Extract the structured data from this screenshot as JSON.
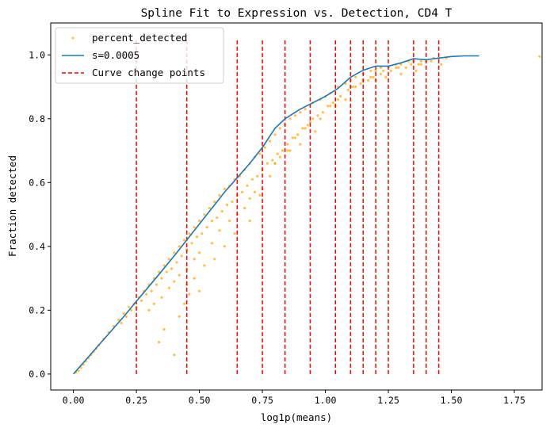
{
  "chart_data": {
    "type": "scatter",
    "title": "Spline Fit to Expression vs. Detection, CD4 T",
    "xlabel": "log1p(means)",
    "ylabel": "Fraction detected",
    "xlim": [
      -0.09,
      1.86
    ],
    "ylim": [
      -0.05,
      1.1
    ],
    "xticks": [
      0.0,
      0.25,
      0.5,
      0.75,
      1.0,
      1.25,
      1.5,
      1.75
    ],
    "xtick_labels": [
      "0.00",
      "0.25",
      "0.50",
      "0.75",
      "1.00",
      "1.25",
      "1.50",
      "1.75"
    ],
    "yticks": [
      0.0,
      0.2,
      0.4,
      0.6,
      0.8,
      1.0
    ],
    "ytick_labels": [
      "0.0",
      "0.2",
      "0.4",
      "0.6",
      "0.8",
      "1.0"
    ],
    "grid": false,
    "legend_position": "top-left",
    "colors": {
      "scatter": "#ffa500",
      "spline": "#1f77b4",
      "change_points": "#ff0000"
    },
    "series": [
      {
        "name": "percent_detected",
        "kind": "scatter",
        "x": [
          0.01,
          0.02,
          0.03,
          0.04,
          0.05,
          0.06,
          0.07,
          0.08,
          0.09,
          0.1,
          0.12,
          0.14,
          0.16,
          0.18,
          0.2,
          0.22,
          0.24,
          0.26,
          0.28,
          0.3,
          0.32,
          0.34,
          0.36,
          0.38,
          0.4,
          0.42,
          0.44,
          0.46,
          0.48,
          0.5,
          0.52,
          0.54,
          0.56,
          0.58,
          0.6,
          0.62,
          0.64,
          0.66,
          0.68,
          0.7,
          0.72,
          0.74,
          0.76,
          0.78,
          0.8,
          0.82,
          0.84,
          0.86,
          0.88,
          0.9,
          0.92,
          0.95,
          0.98,
          1.0,
          1.02,
          1.05,
          1.08,
          1.1,
          1.12,
          1.15,
          1.18,
          1.2,
          1.22,
          1.25,
          1.28,
          1.3,
          1.33,
          1.35,
          1.38,
          1.4,
          1.43,
          1.45,
          1.48,
          1.85,
          0.3,
          0.32,
          0.35,
          0.38,
          0.4,
          0.42,
          0.45,
          0.48,
          0.5,
          0.55,
          0.58,
          0.62,
          0.65,
          0.7,
          0.72,
          0.78,
          0.8,
          0.85,
          0.88,
          0.92,
          0.95,
          1.02,
          1.05,
          1.1,
          1.15,
          1.18,
          1.22,
          1.28,
          1.32,
          1.38,
          0.45,
          0.5,
          0.52,
          0.6,
          0.68,
          0.75,
          0.82,
          0.9,
          0.96,
          1.08,
          1.2,
          1.3,
          0.19,
          0.21,
          0.23,
          0.25,
          0.27,
          0.29,
          0.31,
          0.33,
          0.35,
          0.37,
          0.39,
          0.41,
          0.43,
          0.45,
          0.47,
          0.49,
          0.51,
          0.53,
          0.55,
          0.57,
          0.59,
          0.61,
          0.63,
          0.65,
          0.67,
          0.69,
          0.71,
          0.73,
          0.75,
          0.77,
          0.79,
          0.81,
          0.83,
          0.85,
          0.87,
          0.89,
          0.91,
          0.93,
          0.97,
          0.99,
          1.01,
          1.03,
          1.06,
          1.09,
          1.11,
          1.14,
          1.17,
          1.19,
          1.23,
          1.26,
          1.29,
          1.34,
          1.37,
          1.42,
          0.34,
          0.36,
          0.4,
          0.42,
          0.44,
          0.46,
          0.48,
          0.56,
          0.64,
          0.7,
          0.74,
          0.8,
          0.86,
          0.94,
          0.98,
          1.04,
          1.12,
          1.24,
          1.36,
          1.46
        ],
        "y": [
          0.005,
          0.01,
          0.02,
          0.03,
          0.04,
          0.05,
          0.06,
          0.07,
          0.08,
          0.09,
          0.11,
          0.13,
          0.15,
          0.17,
          0.19,
          0.21,
          0.22,
          0.24,
          0.26,
          0.28,
          0.3,
          0.32,
          0.34,
          0.36,
          0.38,
          0.4,
          0.42,
          0.44,
          0.46,
          0.48,
          0.5,
          0.52,
          0.54,
          0.56,
          0.58,
          0.59,
          0.61,
          0.62,
          0.64,
          0.66,
          0.68,
          0.69,
          0.71,
          0.73,
          0.75,
          0.77,
          0.78,
          0.8,
          0.81,
          0.82,
          0.83,
          0.85,
          0.86,
          0.87,
          0.88,
          0.9,
          0.91,
          0.92,
          0.93,
          0.94,
          0.95,
          0.95,
          0.96,
          0.96,
          0.97,
          0.97,
          0.98,
          0.98,
          0.98,
          0.98,
          0.99,
          0.99,
          0.99,
          0.995,
          0.2,
          0.22,
          0.24,
          0.27,
          0.29,
          0.31,
          0.33,
          0.36,
          0.38,
          0.41,
          0.45,
          0.48,
          0.5,
          0.55,
          0.57,
          0.62,
          0.66,
          0.7,
          0.74,
          0.77,
          0.8,
          0.84,
          0.86,
          0.9,
          0.92,
          0.93,
          0.94,
          0.96,
          0.96,
          0.97,
          0.28,
          0.26,
          0.34,
          0.4,
          0.52,
          0.58,
          0.68,
          0.72,
          0.76,
          0.86,
          0.92,
          0.94,
          0.16,
          0.18,
          0.2,
          0.21,
          0.23,
          0.25,
          0.26,
          0.28,
          0.3,
          0.32,
          0.33,
          0.35,
          0.37,
          0.39,
          0.41,
          0.43,
          0.44,
          0.46,
          0.48,
          0.49,
          0.51,
          0.53,
          0.54,
          0.56,
          0.57,
          0.59,
          0.61,
          0.62,
          0.64,
          0.66,
          0.67,
          0.69,
          0.7,
          0.72,
          0.74,
          0.75,
          0.77,
          0.78,
          0.81,
          0.82,
          0.84,
          0.85,
          0.87,
          0.89,
          0.9,
          0.91,
          0.92,
          0.93,
          0.95,
          0.95,
          0.96,
          0.97,
          0.97,
          0.98,
          0.1,
          0.14,
          0.06,
          0.18,
          0.22,
          0.25,
          0.3,
          0.36,
          0.44,
          0.48,
          0.56,
          0.66,
          0.7,
          0.79,
          0.8,
          0.84,
          0.9,
          0.93,
          0.95,
          0.97
        ]
      },
      {
        "name": "s=0.0005",
        "kind": "line",
        "x": [
          0.0,
          0.05,
          0.1,
          0.15,
          0.2,
          0.25,
          0.3,
          0.35,
          0.4,
          0.45,
          0.5,
          0.55,
          0.6,
          0.65,
          0.7,
          0.75,
          0.8,
          0.84,
          0.9,
          0.95,
          1.0,
          1.05,
          1.1,
          1.15,
          1.2,
          1.25,
          1.3,
          1.35,
          1.4,
          1.45,
          1.5,
          1.55,
          1.61
        ],
        "y": [
          0.0,
          0.045,
          0.09,
          0.135,
          0.18,
          0.228,
          0.275,
          0.322,
          0.37,
          0.42,
          0.47,
          0.52,
          0.57,
          0.615,
          0.66,
          0.71,
          0.77,
          0.8,
          0.83,
          0.85,
          0.87,
          0.895,
          0.93,
          0.952,
          0.965,
          0.965,
          0.975,
          0.988,
          0.985,
          0.99,
          0.995,
          0.997,
          0.997
        ]
      },
      {
        "name": "Curve change points",
        "kind": "vlines",
        "x": [
          0.25,
          0.45,
          0.65,
          0.75,
          0.84,
          0.94,
          1.04,
          1.1,
          1.15,
          1.2,
          1.25,
          1.35,
          1.4,
          1.45
        ],
        "ymin": 0.0,
        "ymax": 1.05
      }
    ]
  }
}
